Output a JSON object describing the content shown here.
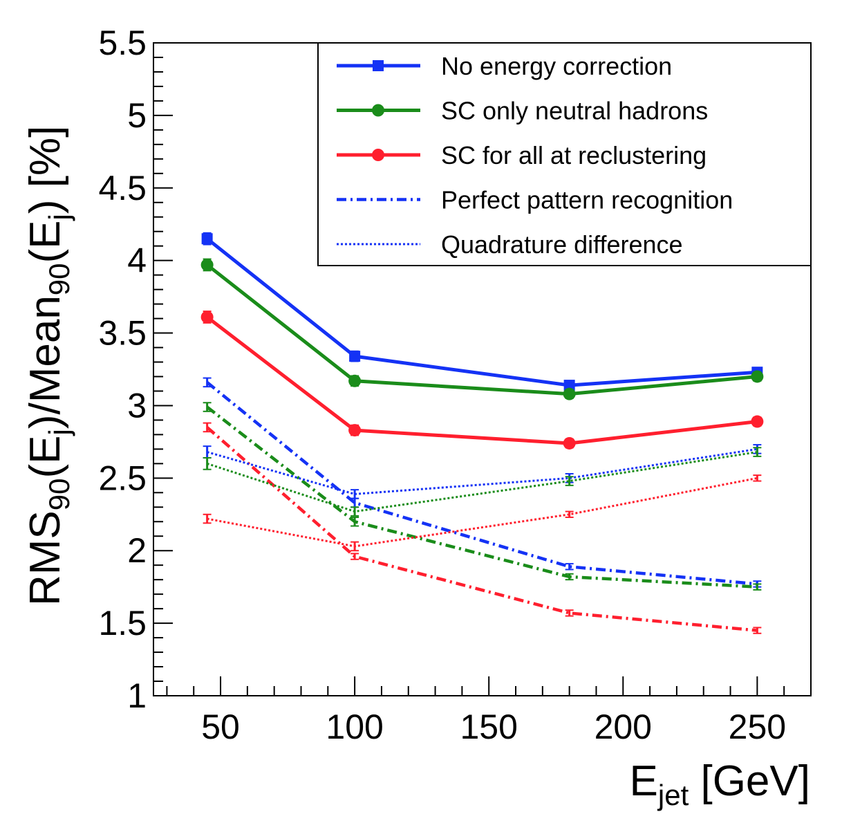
{
  "chart_data": {
    "type": "line",
    "x": [
      45,
      100,
      180,
      250
    ],
    "xlim": [
      25,
      270
    ],
    "ylim": [
      1,
      5.5
    ],
    "x_ticks": [
      "50",
      "100",
      "150",
      "200",
      "250"
    ],
    "y_ticks": [
      "1",
      "1.5",
      "2",
      "2.5",
      "3",
      "3.5",
      "4",
      "4.5",
      "5",
      "5.5"
    ],
    "xlabel": {
      "main": "E",
      "sub": "jet",
      "unit": " [GeV]"
    },
    "ylabel": {
      "p1": "RMS",
      "s1": "90",
      "p2": "(E",
      "s2": "j",
      "p3": ")/Mean",
      "s3": "90",
      "p4": "(E",
      "s4": "j",
      "p5": ") [%]"
    },
    "grid": false,
    "legend_position": "top-right",
    "series": [
      {
        "name": "No energy correction",
        "color": "#1432f5",
        "style": "solid",
        "marker": "square",
        "values": [
          4.15,
          3.34,
          3.14,
          3.23
        ],
        "errors": [
          0.04,
          0.035,
          0.03,
          0.03
        ]
      },
      {
        "name": "SC only neutral hadrons",
        "color": "#1a8c1a",
        "style": "solid",
        "marker": "circle",
        "values": [
          3.97,
          3.17,
          3.08,
          3.2
        ],
        "errors": [
          0.04,
          0.035,
          0.03,
          0.03
        ]
      },
      {
        "name": "SC for all at reclustering",
        "color": "#ff1f2e",
        "style": "solid",
        "marker": "circle",
        "values": [
          3.61,
          2.83,
          2.74,
          2.89
        ],
        "errors": [
          0.04,
          0.035,
          0.03,
          0.03
        ]
      },
      {
        "name": "Perfect pattern recognition",
        "color": "#1432f5",
        "style": "dashdot",
        "marker": "none",
        "values": [
          3.16,
          2.33,
          1.89,
          1.77
        ],
        "errors": [
          0.03,
          0.03,
          0.02,
          0.02
        ]
      },
      {
        "name": "",
        "color": "#1a8c1a",
        "style": "dashdot",
        "marker": "none",
        "values": [
          2.99,
          2.2,
          1.82,
          1.75
        ],
        "errors": [
          0.03,
          0.03,
          0.02,
          0.02
        ]
      },
      {
        "name": "",
        "color": "#ff1f2e",
        "style": "dashdot",
        "marker": "none",
        "values": [
          2.85,
          1.96,
          1.57,
          1.45
        ],
        "errors": [
          0.03,
          0.02,
          0.02,
          0.02
        ]
      },
      {
        "name": "Quadrature difference",
        "color": "#1432f5",
        "style": "dotted",
        "marker": "none",
        "values": [
          2.68,
          2.39,
          2.5,
          2.7
        ],
        "errors": [
          0.04,
          0.03,
          0.03,
          0.03
        ]
      },
      {
        "name": "",
        "color": "#1a8c1a",
        "style": "dotted",
        "marker": "none",
        "values": [
          2.6,
          2.27,
          2.48,
          2.68
        ],
        "errors": [
          0.04,
          0.03,
          0.03,
          0.03
        ]
      },
      {
        "name": "",
        "color": "#ff1f2e",
        "style": "dotted",
        "marker": "none",
        "values": [
          2.22,
          2.03,
          2.25,
          2.5
        ],
        "errors": [
          0.03,
          0.03,
          0.02,
          0.02
        ]
      }
    ]
  }
}
